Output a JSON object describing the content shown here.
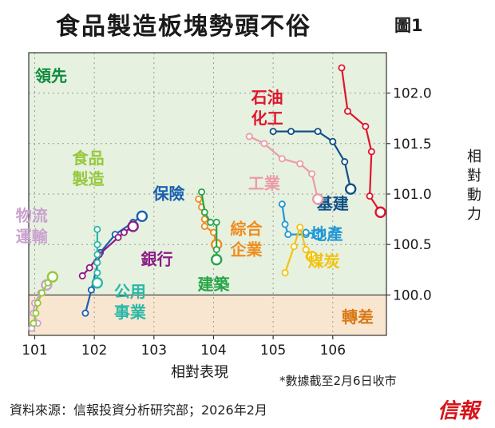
{
  "title": "食品製造板塊勢頭不俗",
  "figure_label": "圖1",
  "footnote": "*數據截至2月6日收市",
  "source": "資料來源：信報投資分析研究部；2026年2月",
  "brand": "信報",
  "chart_data": {
    "type": "line",
    "xlabel": "相對表現",
    "ylabel": "相對動力",
    "xlim": [
      100.9,
      106.9
    ],
    "ylim": [
      99.6,
      102.4
    ],
    "x_ticks": [
      101,
      102,
      103,
      104,
      105,
      106
    ],
    "y_ticks": [
      100.0,
      100.5,
      101.0,
      101.5,
      102.0
    ],
    "zones": {
      "top": "領先",
      "bottom": "轉差",
      "threshold": 100.0
    },
    "grid": true,
    "series": [
      {
        "name": "石油化工",
        "color": "#e0142c",
        "label_pos": [
          104.9,
          101.9
        ],
        "points": [
          [
            106.15,
            102.25
          ],
          [
            106.25,
            101.82
          ],
          [
            106.55,
            101.67
          ],
          [
            106.65,
            101.42
          ],
          [
            106.62,
            100.98
          ],
          [
            106.8,
            100.82
          ]
        ]
      },
      {
        "name": "基建",
        "color": "#0e4f86",
        "label_pos": [
          106.0,
          100.85
        ],
        "points": [
          [
            105.0,
            101.62
          ],
          [
            105.3,
            101.62
          ],
          [
            105.75,
            101.62
          ],
          [
            106.0,
            101.52
          ],
          [
            106.2,
            101.32
          ],
          [
            106.3,
            101.05
          ]
        ]
      },
      {
        "name": "工業",
        "color": "#ec9aa8",
        "label_pos": [
          104.85,
          101.05
        ],
        "points": [
          [
            104.6,
            101.57
          ],
          [
            104.85,
            101.5
          ],
          [
            105.15,
            101.35
          ],
          [
            105.45,
            101.3
          ],
          [
            105.65,
            101.2
          ],
          [
            105.75,
            100.95
          ]
        ]
      },
      {
        "name": "地產",
        "color": "#2298d4",
        "label_pos": [
          105.9,
          100.55
        ],
        "points": [
          [
            105.15,
            100.9
          ],
          [
            105.2,
            100.7
          ],
          [
            105.25,
            100.6
          ],
          [
            105.55,
            100.6
          ],
          [
            105.55,
            100.62
          ],
          [
            105.75,
            100.6
          ]
        ]
      },
      {
        "name": "煤炭",
        "color": "#f2c311",
        "label_pos": [
          105.85,
          100.28
        ],
        "points": [
          [
            105.2,
            100.22
          ],
          [
            105.35,
            100.48
          ],
          [
            105.45,
            100.67
          ],
          [
            105.55,
            100.45
          ],
          [
            105.6,
            100.38
          ],
          [
            105.65,
            100.38
          ]
        ]
      },
      {
        "name": "綜合企業",
        "color": "#f08c1c",
        "label_pos": [
          104.55,
          100.6
        ],
        "points": [
          [
            103.75,
            100.95
          ],
          [
            103.8,
            100.87
          ],
          [
            103.85,
            100.75
          ],
          [
            103.85,
            100.68
          ],
          [
            104.0,
            100.62
          ],
          [
            104.05,
            100.5
          ]
        ]
      },
      {
        "name": "建築",
        "color": "#27a548",
        "label_pos": [
          104.0,
          100.05
        ],
        "points": [
          [
            103.8,
            101.02
          ],
          [
            103.85,
            100.82
          ],
          [
            103.95,
            100.72
          ],
          [
            104.05,
            100.72
          ],
          [
            104.05,
            100.45
          ],
          [
            104.05,
            100.35
          ]
        ]
      },
      {
        "name": "保險",
        "color": "#1860b0",
        "label_pos": [
          103.25,
          100.95
        ],
        "points": [
          [
            101.85,
            99.82
          ],
          [
            101.95,
            100.05
          ],
          [
            102.1,
            100.42
          ],
          [
            102.35,
            100.6
          ],
          [
            102.65,
            100.72
          ],
          [
            102.8,
            100.78
          ]
        ]
      },
      {
        "name": "銀行",
        "color": "#8c1c86",
        "label_pos": [
          103.05,
          100.3
        ],
        "points": [
          [
            101.8,
            100.19
          ],
          [
            101.92,
            100.27
          ],
          [
            102.08,
            100.4
          ],
          [
            102.4,
            100.57
          ],
          [
            102.5,
            100.62
          ],
          [
            102.65,
            100.68
          ]
        ]
      },
      {
        "name": "公用事業",
        "color": "#2ab8a8",
        "label_pos": [
          102.6,
          99.98
        ],
        "points": [
          [
            102.05,
            100.65
          ],
          [
            102.05,
            100.5
          ],
          [
            102.05,
            100.4
          ],
          [
            102.05,
            100.32
          ],
          [
            102.05,
            100.22
          ],
          [
            102.05,
            100.12
          ]
        ]
      },
      {
        "name": "物流運輸",
        "color": "#c9a2cf",
        "label_pos": [
          100.95,
          100.73
        ],
        "points": [
          [
            100.95,
            99.67
          ],
          [
            101.05,
            99.72
          ],
          [
            100.98,
            99.82
          ],
          [
            101.0,
            99.92
          ],
          [
            101.1,
            100.02
          ],
          [
            101.2,
            100.1
          ]
        ]
      },
      {
        "name": "食品製造",
        "color": "#96c83c",
        "label_pos": [
          101.9,
          101.3
        ],
        "points": [
          [
            100.98,
            99.72
          ],
          [
            101.02,
            99.82
          ],
          [
            101.05,
            99.92
          ],
          [
            101.12,
            100.02
          ],
          [
            101.22,
            100.12
          ],
          [
            101.3,
            100.18
          ]
        ]
      }
    ]
  }
}
